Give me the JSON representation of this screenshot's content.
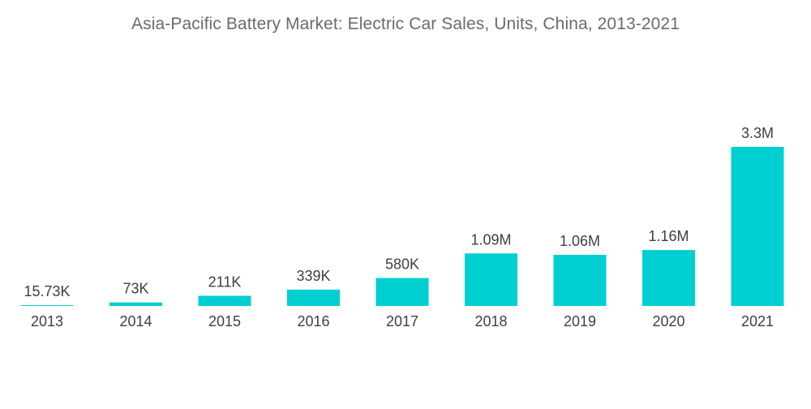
{
  "chart_data": {
    "type": "bar",
    "title": "Asia-Pacific Battery Market: Electric Car Sales, Units, China, 2013-2021",
    "xlabel": "",
    "ylabel": "",
    "categories": [
      "2013",
      "2014",
      "2015",
      "2016",
      "2017",
      "2018",
      "2019",
      "2020",
      "2021"
    ],
    "values": [
      15730,
      73000,
      211000,
      339000,
      580000,
      1090000,
      1060000,
      1160000,
      3300000
    ],
    "data_labels": [
      "15.73K",
      "73K",
      "211K",
      "339K",
      "580K",
      "1.09M",
      "1.06M",
      "1.16M",
      "3.3M"
    ],
    "ylim": [
      0,
      3300000
    ],
    "grid": false,
    "legend": "none",
    "bar_color": "#00cfd1"
  }
}
